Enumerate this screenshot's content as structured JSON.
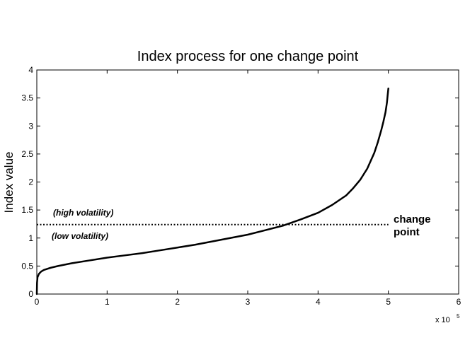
{
  "chart_data": {
    "type": "line",
    "title": "Index process for one change point",
    "xlabel": "",
    "ylabel": "Index value",
    "x_multiplier": "x 10",
    "x_multiplier_exp": "5",
    "xlim": [
      0,
      6
    ],
    "ylim": [
      0,
      4
    ],
    "xticks": [
      0,
      1,
      2,
      3,
      4,
      5,
      6
    ],
    "yticks": [
      0,
      0.5,
      1,
      1.5,
      2,
      2.5,
      3,
      3.5,
      4
    ],
    "xtick_labels": [
      "0",
      "1",
      "2",
      "3",
      "4",
      "5",
      "6"
    ],
    "ytick_labels": [
      "0",
      "0.5",
      "1",
      "1.5",
      "2",
      "2.5",
      "3",
      "3.5",
      "4"
    ],
    "grid": false,
    "series": [
      {
        "color": "#000000",
        "x": [
          0,
          0.003,
          0.01,
          0.03,
          0.06,
          0.1,
          0.2,
          0.3,
          0.5,
          0.75,
          1.0,
          1.25,
          1.5,
          1.75,
          2.0,
          2.25,
          2.5,
          2.75,
          3.0,
          3.25,
          3.5,
          3.75,
          4.0,
          4.2,
          4.4,
          4.5,
          4.6,
          4.7,
          4.8,
          4.85,
          4.9,
          4.93,
          4.96,
          4.98,
          4.99,
          5.0
        ],
        "y": [
          0,
          0.2,
          0.3,
          0.36,
          0.4,
          0.43,
          0.47,
          0.5,
          0.55,
          0.6,
          0.65,
          0.69,
          0.73,
          0.78,
          0.83,
          0.88,
          0.94,
          1.0,
          1.06,
          1.14,
          1.22,
          1.33,
          1.45,
          1.59,
          1.76,
          1.89,
          2.04,
          2.24,
          2.52,
          2.71,
          2.93,
          3.08,
          3.25,
          3.42,
          3.55,
          3.67
        ]
      }
    ],
    "threshold": {
      "value": 1.24,
      "x_end": 5.0,
      "style": "dotted",
      "label_line1": "change",
      "label_line2": "point"
    },
    "annotations": {
      "above": "(high volatility)",
      "below": "(low volatility)"
    }
  }
}
